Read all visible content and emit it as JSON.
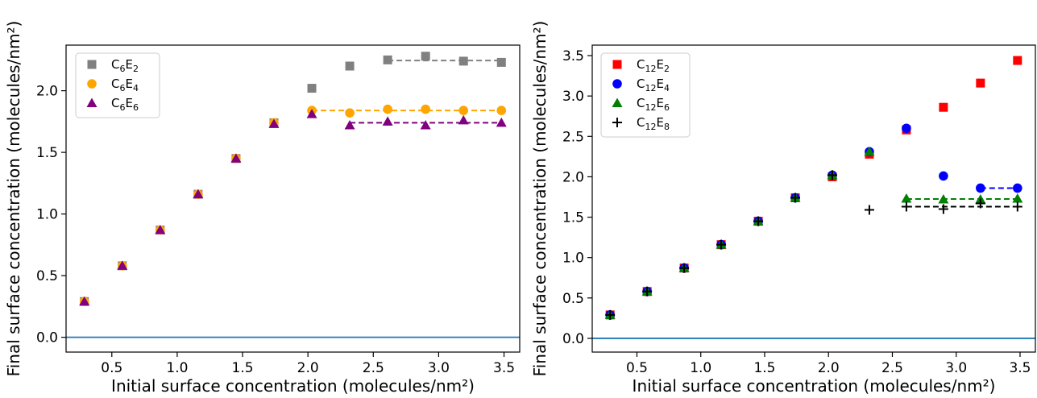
{
  "chart_data": [
    {
      "type": "scatter",
      "xlabel": "Initial surface concentration (molecules/nm²)",
      "ylabel": "Final surface concentration (molecules/nm²)",
      "xlim": [
        0.15,
        3.62
      ],
      "ylim": [
        -0.12,
        2.37
      ],
      "xticks": [
        0.5,
        1.0,
        1.5,
        2.0,
        2.5,
        3.0,
        3.5
      ],
      "yticks": [
        0.0,
        0.5,
        1.0,
        1.5,
        2.0
      ],
      "reference_line": {
        "y": 0.0,
        "color": "#1f77b4"
      },
      "legend_position": "top-left",
      "series": [
        {
          "name_base": "C",
          "name_sub1": "6",
          "name_mid": "E",
          "name_sub2": "2",
          "marker": "square",
          "color": "#808080",
          "x": [
            0.29,
            0.58,
            0.87,
            1.16,
            1.45,
            1.74,
            2.03,
            2.32,
            2.61,
            2.9,
            3.19,
            3.48
          ],
          "y": [
            0.29,
            0.58,
            0.87,
            1.16,
            1.45,
            1.74,
            2.02,
            2.2,
            2.25,
            2.28,
            2.24,
            2.23
          ],
          "plateau": {
            "x": [
              2.61,
              3.48
            ],
            "y": 2.245
          }
        },
        {
          "name_base": "C",
          "name_sub1": "6",
          "name_mid": "E",
          "name_sub2": "4",
          "marker": "circle",
          "color": "#FFA500",
          "x": [
            0.29,
            0.58,
            0.87,
            1.16,
            1.45,
            1.74,
            2.03,
            2.32,
            2.61,
            2.9,
            3.19,
            3.48
          ],
          "y": [
            0.29,
            0.58,
            0.87,
            1.16,
            1.45,
            1.74,
            1.84,
            1.82,
            1.85,
            1.85,
            1.84,
            1.84
          ],
          "plateau": {
            "x": [
              2.03,
              3.48
            ],
            "y": 1.84
          }
        },
        {
          "name_base": "C",
          "name_sub1": "6",
          "name_mid": "E",
          "name_sub2": "6",
          "marker": "triangle",
          "color": "#800080",
          "x": [
            0.29,
            0.58,
            0.87,
            1.16,
            1.45,
            1.74,
            2.03,
            2.32,
            2.61,
            2.9,
            3.19,
            3.48
          ],
          "y": [
            0.29,
            0.58,
            0.87,
            1.16,
            1.45,
            1.73,
            1.81,
            1.72,
            1.75,
            1.72,
            1.76,
            1.74
          ],
          "plateau": {
            "x": [
              2.32,
              3.48
            ],
            "y": 1.74
          }
        }
      ]
    },
    {
      "type": "scatter",
      "xlabel": "Initial surface concentration (molecules/nm²)",
      "ylabel": "Final surface concentration (molecules/nm²)",
      "xlim": [
        0.15,
        3.62
      ],
      "ylim": [
        -0.17,
        3.63
      ],
      "xticks": [
        0.5,
        1.0,
        1.5,
        2.0,
        2.5,
        3.0,
        3.5
      ],
      "yticks": [
        0.0,
        0.5,
        1.0,
        1.5,
        2.0,
        2.5,
        3.0,
        3.5
      ],
      "reference_line": {
        "y": 0.0,
        "color": "#1f77b4"
      },
      "legend_position": "top-left",
      "series": [
        {
          "name_base": "C",
          "name_sub1": "12",
          "name_mid": "E",
          "name_sub2": "2",
          "marker": "square",
          "color": "#FF0000",
          "x": [
            0.29,
            0.58,
            0.87,
            1.16,
            1.45,
            1.74,
            2.03,
            2.32,
            2.61,
            2.9,
            3.19,
            3.48
          ],
          "y": [
            0.29,
            0.58,
            0.87,
            1.16,
            1.45,
            1.74,
            2.0,
            2.28,
            2.58,
            2.86,
            3.16,
            3.44
          ]
        },
        {
          "name_base": "C",
          "name_sub1": "12",
          "name_mid": "E",
          "name_sub2": "4",
          "marker": "circle",
          "color": "#0000FF",
          "x": [
            0.29,
            0.58,
            0.87,
            1.16,
            1.45,
            1.74,
            2.03,
            2.32,
            2.61,
            2.9,
            3.19,
            3.48
          ],
          "y": [
            0.29,
            0.58,
            0.87,
            1.16,
            1.45,
            1.74,
            2.02,
            2.31,
            2.6,
            2.01,
            1.86,
            1.86
          ],
          "plateau": {
            "x": [
              3.19,
              3.48
            ],
            "y": 1.86
          }
        },
        {
          "name_base": "C",
          "name_sub1": "12",
          "name_mid": "E",
          "name_sub2": "6",
          "marker": "triangle",
          "color": "#008000",
          "x": [
            0.29,
            0.58,
            0.87,
            1.16,
            1.45,
            1.74,
            2.03,
            2.32,
            2.61,
            2.9,
            3.19,
            3.48
          ],
          "y": [
            0.29,
            0.58,
            0.87,
            1.16,
            1.45,
            1.74,
            2.02,
            2.31,
            1.73,
            1.72,
            1.72,
            1.73
          ],
          "plateau": {
            "x": [
              2.61,
              3.48
            ],
            "y": 1.725
          }
        },
        {
          "name_base": "C",
          "name_sub1": "12",
          "name_mid": "E",
          "name_sub2": "8",
          "marker": "plus",
          "color": "#000000",
          "x": [
            0.29,
            0.58,
            0.87,
            1.16,
            1.45,
            1.74,
            2.03,
            2.32,
            2.61,
            2.9,
            3.19,
            3.48
          ],
          "y": [
            0.29,
            0.58,
            0.87,
            1.16,
            1.45,
            1.74,
            2.02,
            1.59,
            1.63,
            1.6,
            1.67,
            1.63
          ],
          "plateau": {
            "x": [
              2.61,
              3.48
            ],
            "y": 1.63
          }
        }
      ]
    }
  ]
}
